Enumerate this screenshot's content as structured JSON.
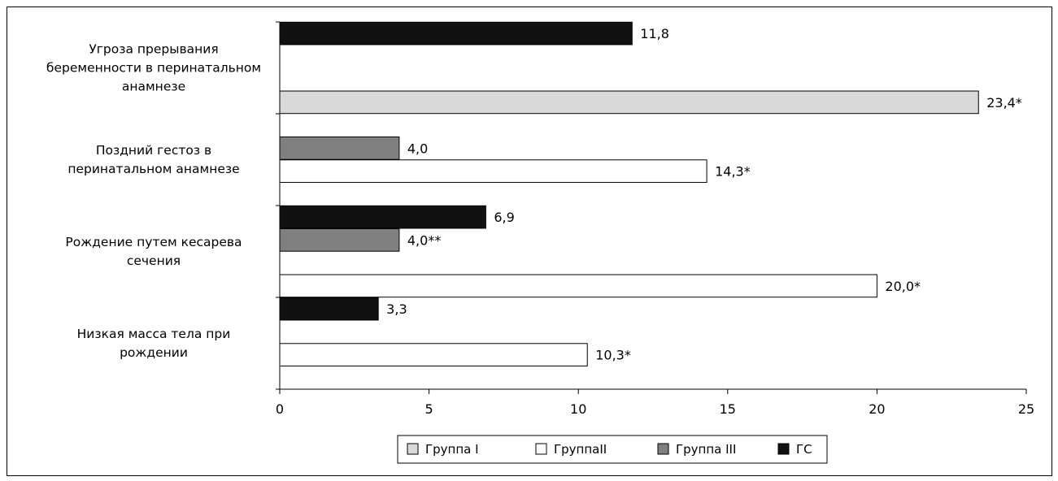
{
  "chart_data": {
    "type": "bar",
    "orientation": "horizontal",
    "categories": [
      {
        "label_lines": [
          "Угроза прерывания",
          "беременности в перинатальном",
          "анамнезе"
        ]
      },
      {
        "label_lines": [
          "Поздний гестоз в",
          "перинатальном анамнезе"
        ]
      },
      {
        "label_lines": [
          "Рождение путем кесарева",
          "сечения"
        ]
      },
      {
        "label_lines": [
          "Низкая масса тела  при",
          "рождении"
        ]
      }
    ],
    "series": [
      {
        "name": "Группа I",
        "color": "#d9d9d9"
      },
      {
        "name": "ГруппаII",
        "color": "#ffffff"
      },
      {
        "name": "Группа III",
        "color": "#808080"
      },
      {
        "name": "ГС",
        "color": "#111111"
      }
    ],
    "bars": [
      {
        "category": 0,
        "series": 3,
        "slot": 0,
        "value": 11.8,
        "label": "11,8"
      },
      {
        "category": 0,
        "series": 0,
        "slot": 3,
        "value": 23.4,
        "label": "23,4*"
      },
      {
        "category": 1,
        "series": 2,
        "slot": 1,
        "value": 4.0,
        "label": "4,0"
      },
      {
        "category": 1,
        "series": 1,
        "slot": 2,
        "value": 14.3,
        "label": "14,3*"
      },
      {
        "category": 2,
        "series": 3,
        "slot": 0,
        "value": 6.9,
        "label": "6,9"
      },
      {
        "category": 2,
        "series": 2,
        "slot": 1,
        "value": 4.0,
        "label": "4,0**"
      },
      {
        "category": 2,
        "series": 1,
        "slot": 3,
        "value": 20.0,
        "label": "20,0*"
      },
      {
        "category": 3,
        "series": 3,
        "slot": 0,
        "value": 3.3,
        "label": "3,3"
      },
      {
        "category": 3,
        "series": 1,
        "slot": 2,
        "value": 10.3,
        "label": "10,3*"
      }
    ],
    "xlim": [
      0,
      25
    ],
    "xticks": [
      0,
      5,
      10,
      15,
      20,
      25
    ],
    "legend_position": "bottom",
    "grid": false
  }
}
